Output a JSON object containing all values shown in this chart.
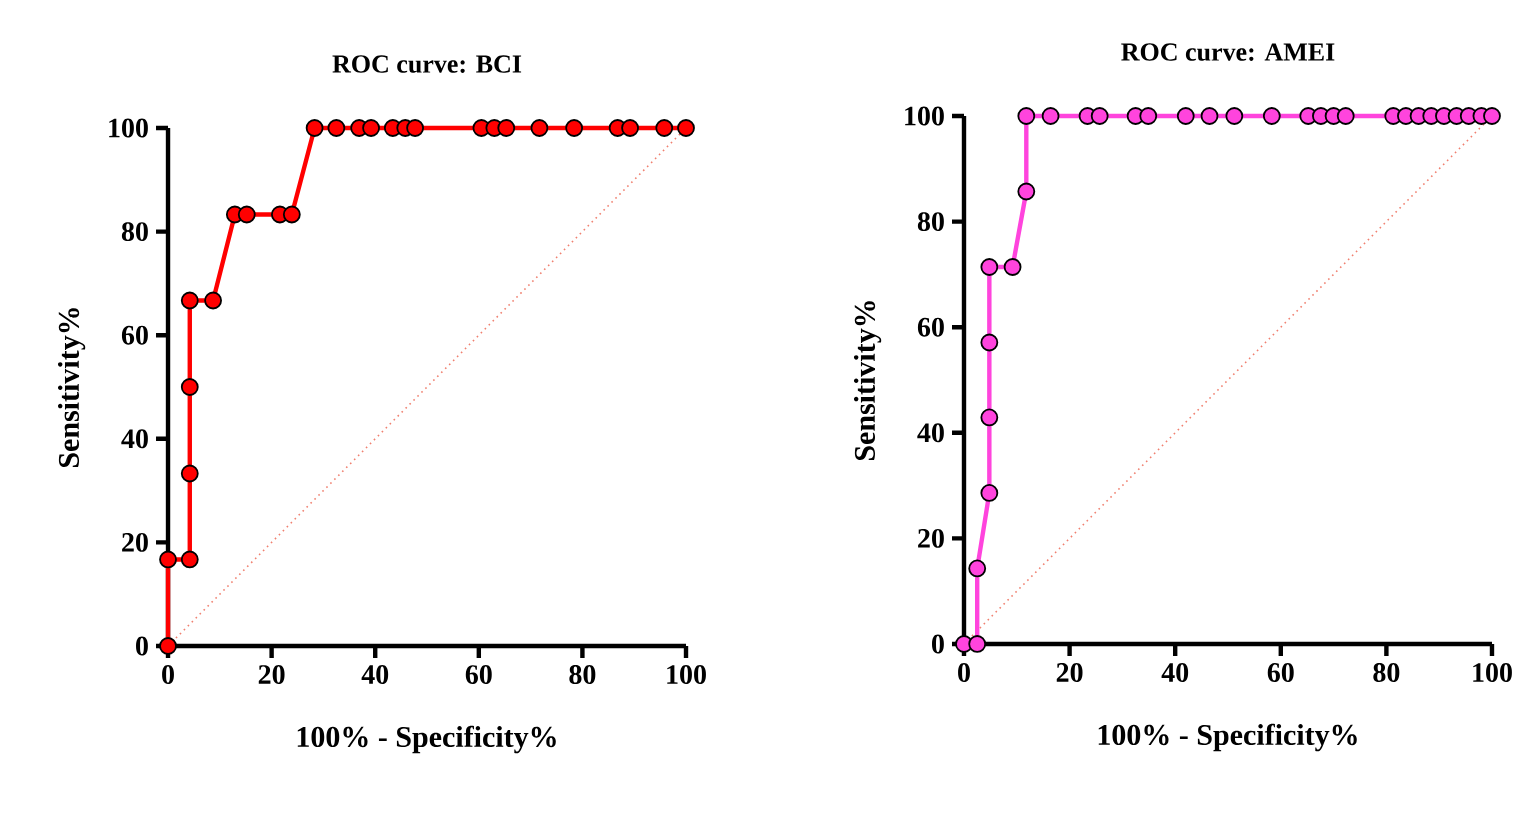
{
  "chart_data": [
    {
      "type": "line",
      "title": "ROC curve: BCI",
      "xlabel": "100% - Specificity%",
      "ylabel": "Sensitivity%",
      "xlim": [
        0,
        100
      ],
      "ylim": [
        0,
        100
      ],
      "xticks": [
        0,
        20,
        40,
        60,
        80,
        100
      ],
      "yticks": [
        0,
        20,
        40,
        60,
        80,
        100
      ],
      "marker": "circle",
      "series": [
        {
          "color": "#ff0000",
          "x": [
            0,
            0,
            4.2,
            4.2,
            4.2,
            4.2,
            8.7,
            12.9,
            15.2,
            21.6,
            23.9,
            28.3,
            32.5,
            36.9,
            39.2,
            43.4,
            45.8,
            47.7,
            60.5,
            63,
            65.3,
            71.7,
            78.4,
            86.8,
            89.2,
            95.8,
            100
          ],
          "values": [
            0,
            16.7,
            16.7,
            33.3,
            50,
            66.7,
            66.7,
            83.3,
            83.3,
            83.3,
            83.3,
            100,
            100,
            100,
            100,
            100,
            100,
            100,
            100,
            100,
            100,
            100,
            100,
            100,
            100,
            100,
            100
          ]
        },
        {
          "color": "#f08070",
          "x": [
            0,
            100
          ],
          "values": [
            0,
            100
          ],
          "marker": "none",
          "line_style": "dotted"
        }
      ]
    },
    {
      "type": "line",
      "title": "ROC curve: AMEI",
      "xlabel": "100% - Specificity%",
      "ylabel": "Sensitivity%",
      "xlim": [
        0,
        100
      ],
      "ylim": [
        0,
        100
      ],
      "xticks": [
        0,
        20,
        40,
        60,
        80,
        100
      ],
      "yticks": [
        0,
        20,
        40,
        60,
        80,
        100
      ],
      "marker": "circle",
      "series": [
        {
          "color": "#ff44dd",
          "x": [
            0,
            2.5,
            2.5,
            4.8,
            4.8,
            4.8,
            4.8,
            9.2,
            11.8,
            11.8,
            16.4,
            23.4,
            25.7,
            32.5,
            34.9,
            42,
            46.5,
            51.2,
            58.3,
            65.2,
            67.6,
            70,
            72.3,
            81.3,
            83.7,
            86.1,
            88.5,
            90.9,
            93.3,
            95.6,
            98,
            100
          ],
          "values": [
            0,
            0,
            14.3,
            28.6,
            42.9,
            57.1,
            71.4,
            71.4,
            85.7,
            100,
            100,
            100,
            100,
            100,
            100,
            100,
            100,
            100,
            100,
            100,
            100,
            100,
            100,
            100,
            100,
            100,
            100,
            100,
            100,
            100,
            100,
            100
          ]
        },
        {
          "color": "#f08070",
          "x": [
            0,
            100
          ],
          "values": [
            0,
            100
          ],
          "marker": "none",
          "line_style": "dotted"
        }
      ]
    }
  ]
}
